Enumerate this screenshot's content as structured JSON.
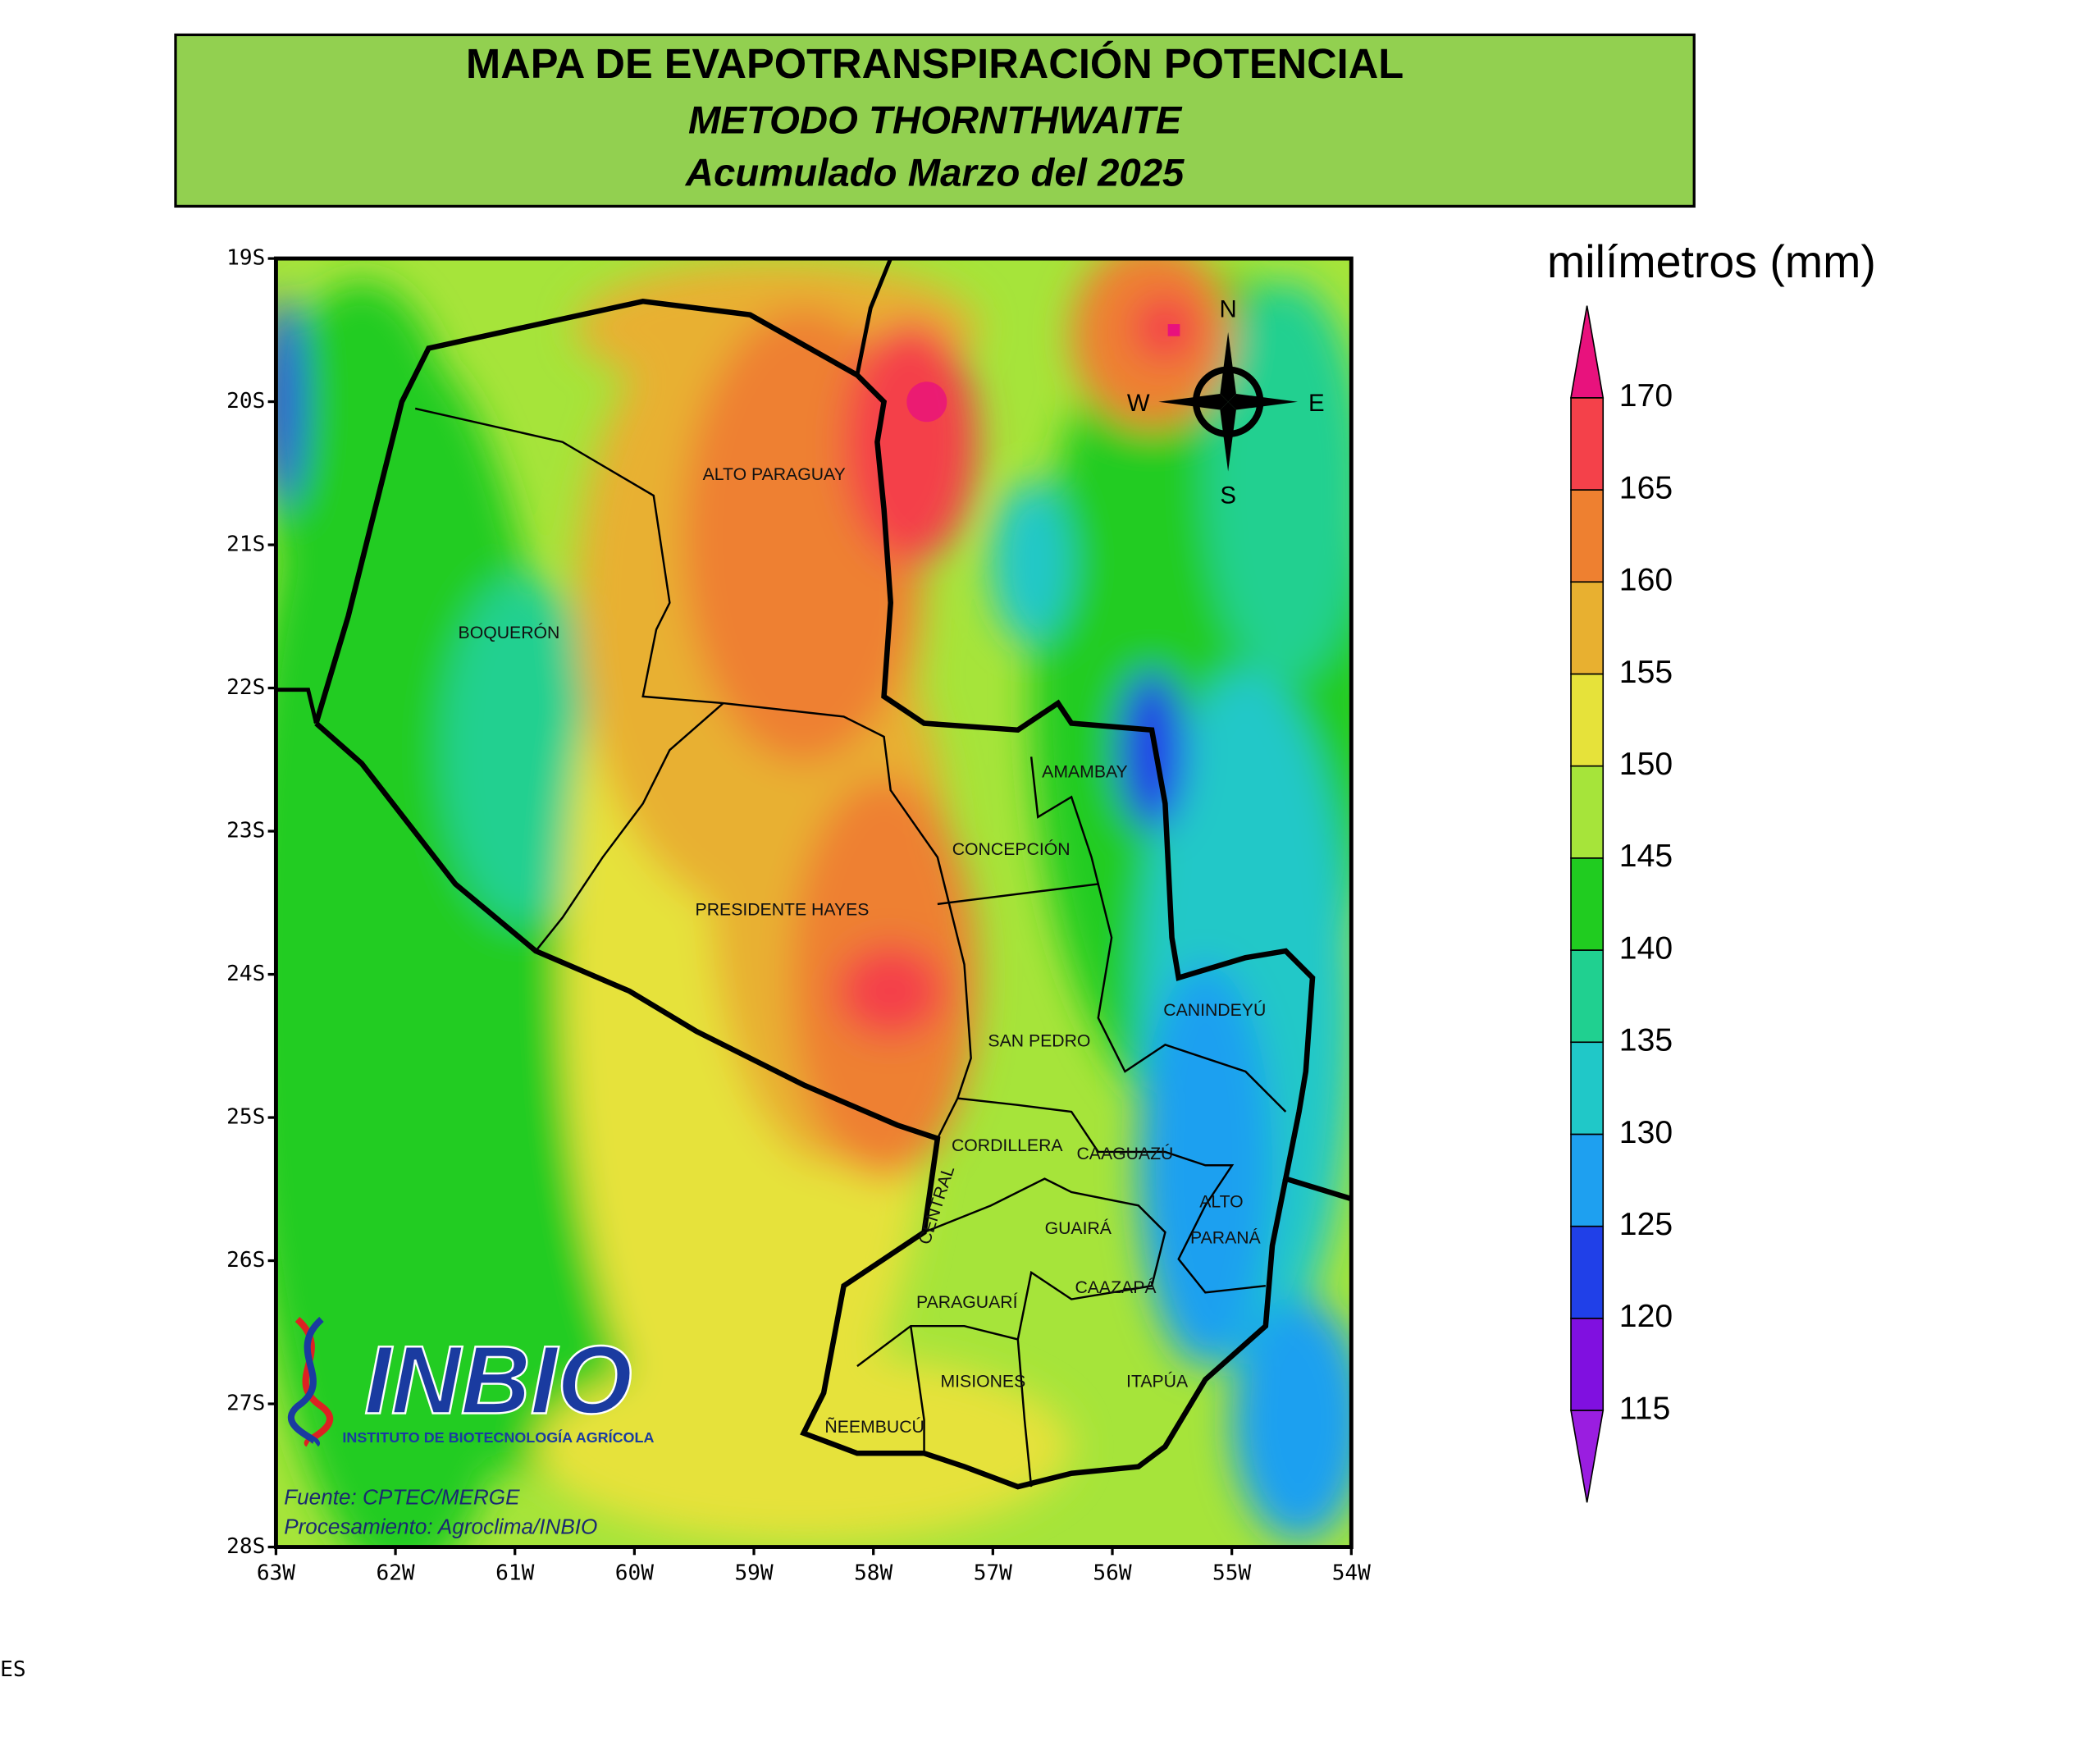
{
  "header": {
    "title": "MAPA DE EVAPOTRANSPIRACIÓN POTENCIAL",
    "subtitle": "METODO THORNTHWAITE",
    "period": "Acumulado Marzo del 2025"
  },
  "map": {
    "lon_ticks": [
      {
        "value": -63,
        "label": "63W"
      },
      {
        "value": -62,
        "label": "62W"
      },
      {
        "value": -61,
        "label": "61W"
      },
      {
        "value": -60,
        "label": "60W"
      },
      {
        "value": -59,
        "label": "59W"
      },
      {
        "value": -58,
        "label": "58W"
      },
      {
        "value": -57,
        "label": "57W"
      },
      {
        "value": -56,
        "label": "56W"
      },
      {
        "value": -55,
        "label": "55W"
      },
      {
        "value": -54,
        "label": "54W"
      }
    ],
    "lat_ticks": [
      {
        "value": -19,
        "label": "19S"
      },
      {
        "value": -20,
        "label": "20S"
      },
      {
        "value": -21,
        "label": "21S"
      },
      {
        "value": -22,
        "label": "22S"
      },
      {
        "value": -23,
        "label": "23S"
      },
      {
        "value": -24,
        "label": "24S"
      },
      {
        "value": -25,
        "label": "25S"
      },
      {
        "value": -26,
        "label": "26S"
      },
      {
        "value": -27,
        "label": "27S"
      },
      {
        "value": -28,
        "label": "28S"
      }
    ],
    "regions": [
      "ALTO PARAGUAY",
      "BOQUERÓN",
      "AMAMBAY",
      "CONCEPCIÓN",
      "PRESIDENTE HAYES",
      "CANINDEYÚ",
      "SAN PEDRO",
      "CORDILLERA",
      "CAAGUAZÚ",
      "ALTO",
      "PARANÁ",
      "GUAIRÁ",
      "CENTRAL",
      "CAAZAPÁ",
      "PARAGUARÍ",
      "MISIONES",
      "ITAPÚA",
      "ÑEEMBUCÚ"
    ],
    "compass": {
      "n": "N",
      "s": "S",
      "e": "E",
      "w": "W"
    }
  },
  "legend": {
    "title": "milímetros (mm)",
    "levels": [
      115,
      120,
      125,
      130,
      135,
      140,
      145,
      150,
      155,
      160,
      165,
      170
    ],
    "colors": [
      "#9a1ee0",
      "#8010e0",
      "#2040e8",
      "#1ea0f0",
      "#20c8c8",
      "#20d090",
      "#20cc20",
      "#a6e43a",
      "#e6e23a",
      "#e8b030",
      "#ee8030",
      "#f4414a",
      "#e8127d"
    ]
  },
  "logo": {
    "name": "INBIO",
    "subtitle": "INSTITUTO DE BIOTECNOLOGÍA AGRÍCOLA"
  },
  "source": [
    "Fuente: CPTEC/MERGE",
    "Procesamiento: Agroclima/INBIO"
  ],
  "footer": "ES"
}
